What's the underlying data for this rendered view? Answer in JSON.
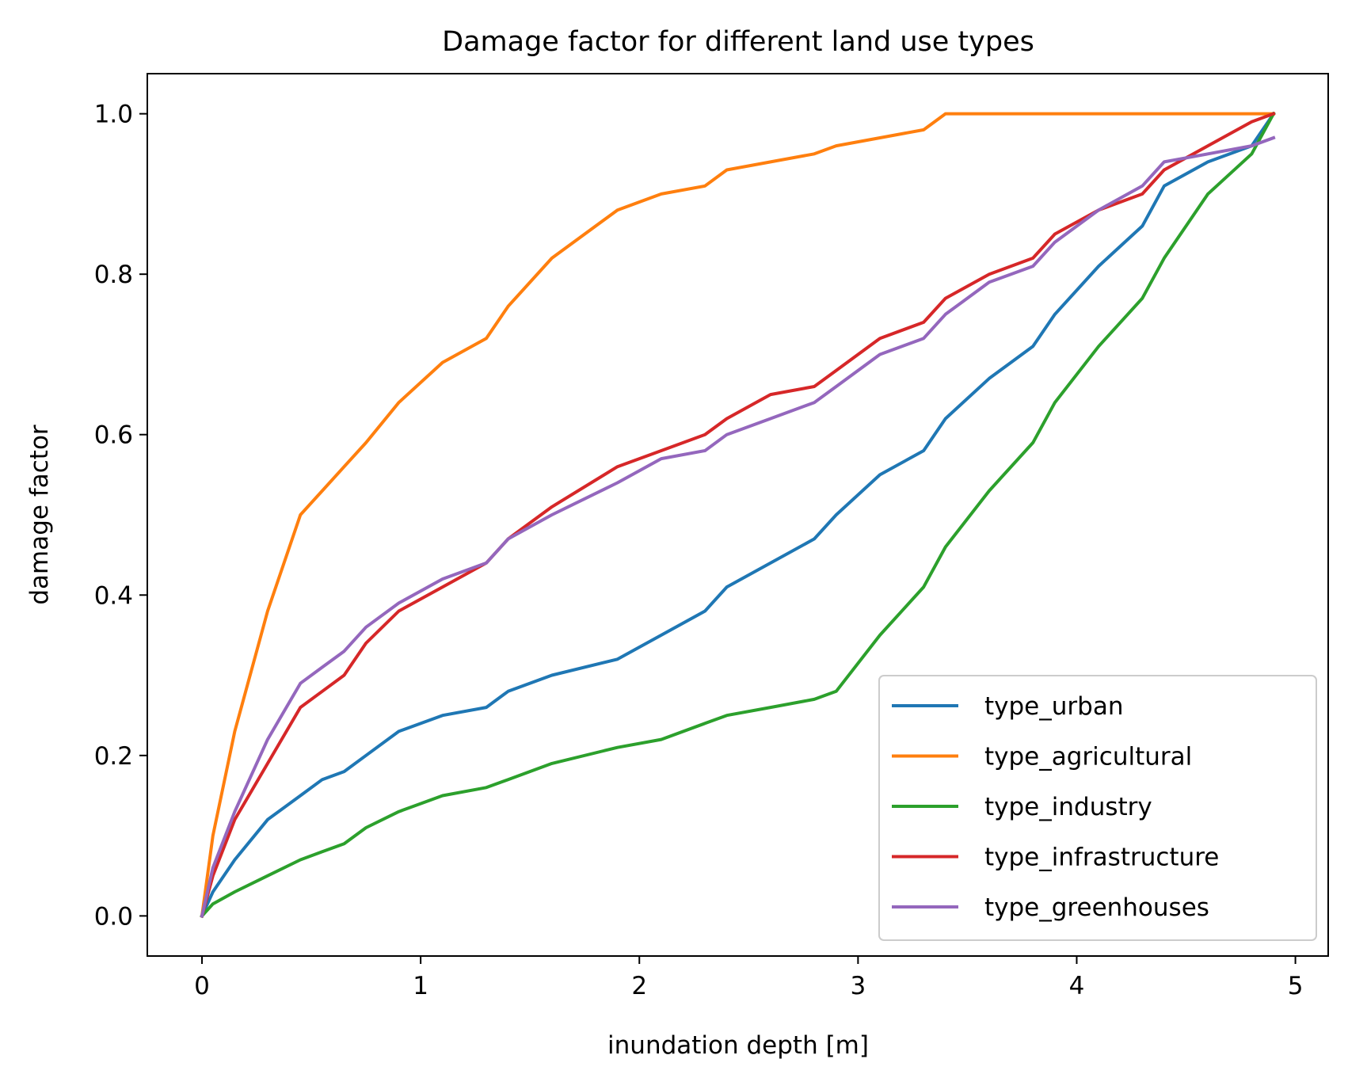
{
  "chart_data": {
    "type": "line",
    "title": "Damage factor for different land use types",
    "xlabel": "inundation depth [m]",
    "ylabel": "damage factor",
    "xlim": [
      -0.25,
      5.15
    ],
    "ylim": [
      -0.05,
      1.05
    ],
    "xticks": [
      0,
      1,
      2,
      3,
      4,
      5
    ],
    "xtick_labels": [
      "0",
      "1",
      "2",
      "3",
      "4",
      "5"
    ],
    "yticks": [
      0.0,
      0.2,
      0.4,
      0.6,
      0.8,
      1.0
    ],
    "ytick_labels": [
      "0.0",
      "0.2",
      "0.4",
      "0.6",
      "0.8",
      "1.0"
    ],
    "grid": false,
    "legend_position": "lower-right",
    "series": [
      {
        "name": "type_urban",
        "color": "#1f77b4",
        "x": [
          0,
          0.05,
          0.15,
          0.3,
          0.45,
          0.55,
          0.65,
          0.75,
          0.9,
          1.1,
          1.3,
          1.4,
          1.6,
          1.9,
          2.1,
          2.3,
          2.4,
          2.6,
          2.8,
          2.9,
          3.1,
          3.3,
          3.4,
          3.6,
          3.8,
          3.9,
          4.1,
          4.3,
          4.4,
          4.6,
          4.8,
          4.9
        ],
        "y": [
          0,
          0.03,
          0.07,
          0.12,
          0.15,
          0.17,
          0.18,
          0.2,
          0.23,
          0.25,
          0.26,
          0.28,
          0.3,
          0.32,
          0.35,
          0.38,
          0.41,
          0.44,
          0.47,
          0.5,
          0.55,
          0.58,
          0.62,
          0.67,
          0.71,
          0.75,
          0.81,
          0.86,
          0.91,
          0.94,
          0.96,
          1.0
        ]
      },
      {
        "name": "type_agricultural",
        "color": "#ff7f0e",
        "x": [
          0,
          0.05,
          0.15,
          0.3,
          0.45,
          0.55,
          0.65,
          0.75,
          0.9,
          1.1,
          1.3,
          1.4,
          1.6,
          1.9,
          2.1,
          2.3,
          2.4,
          2.6,
          2.8,
          2.9,
          3.1,
          3.3,
          3.4,
          3.6,
          3.8,
          3.9,
          4.1,
          4.3,
          4.4,
          4.6,
          4.8,
          4.9
        ],
        "y": [
          0,
          0.1,
          0.23,
          0.38,
          0.5,
          0.53,
          0.56,
          0.59,
          0.64,
          0.69,
          0.72,
          0.76,
          0.82,
          0.88,
          0.9,
          0.91,
          0.93,
          0.94,
          0.95,
          0.96,
          0.97,
          0.98,
          1.0,
          1.0,
          1.0,
          1.0,
          1.0,
          1.0,
          1.0,
          1.0,
          1.0,
          1.0
        ]
      },
      {
        "name": "type_industry",
        "color": "#2ca02c",
        "x": [
          0,
          0.05,
          0.15,
          0.3,
          0.45,
          0.55,
          0.65,
          0.75,
          0.9,
          1.1,
          1.3,
          1.4,
          1.6,
          1.9,
          2.1,
          2.3,
          2.4,
          2.6,
          2.8,
          2.9,
          3.1,
          3.3,
          3.4,
          3.6,
          3.8,
          3.9,
          4.1,
          4.3,
          4.4,
          4.6,
          4.8,
          4.9
        ],
        "y": [
          0,
          0.015,
          0.03,
          0.05,
          0.07,
          0.08,
          0.09,
          0.11,
          0.13,
          0.15,
          0.16,
          0.17,
          0.19,
          0.21,
          0.22,
          0.24,
          0.25,
          0.26,
          0.27,
          0.28,
          0.35,
          0.41,
          0.46,
          0.53,
          0.59,
          0.64,
          0.71,
          0.77,
          0.82,
          0.9,
          0.95,
          1.0
        ]
      },
      {
        "name": "type_infrastructure",
        "color": "#d62728",
        "x": [
          0,
          0.05,
          0.15,
          0.3,
          0.45,
          0.55,
          0.65,
          0.75,
          0.9,
          1.1,
          1.3,
          1.4,
          1.6,
          1.9,
          2.1,
          2.3,
          2.4,
          2.6,
          2.8,
          2.9,
          3.1,
          3.3,
          3.4,
          3.6,
          3.8,
          3.9,
          4.1,
          4.3,
          4.4,
          4.6,
          4.8,
          4.9
        ],
        "y": [
          0,
          0.05,
          0.12,
          0.19,
          0.26,
          0.28,
          0.3,
          0.34,
          0.38,
          0.41,
          0.44,
          0.47,
          0.51,
          0.56,
          0.58,
          0.6,
          0.62,
          0.65,
          0.66,
          0.68,
          0.72,
          0.74,
          0.77,
          0.8,
          0.82,
          0.85,
          0.88,
          0.9,
          0.93,
          0.96,
          0.99,
          1.0
        ]
      },
      {
        "name": "type_greenhouses",
        "color": "#9467bd",
        "x": [
          0,
          0.05,
          0.15,
          0.3,
          0.45,
          0.55,
          0.65,
          0.75,
          0.9,
          1.1,
          1.3,
          1.4,
          1.6,
          1.9,
          2.1,
          2.3,
          2.4,
          2.6,
          2.8,
          2.9,
          3.1,
          3.3,
          3.4,
          3.6,
          3.8,
          3.9,
          4.1,
          4.3,
          4.4,
          4.6,
          4.8,
          4.9
        ],
        "y": [
          0,
          0.06,
          0.13,
          0.22,
          0.29,
          0.31,
          0.33,
          0.36,
          0.39,
          0.42,
          0.44,
          0.47,
          0.5,
          0.54,
          0.57,
          0.58,
          0.6,
          0.62,
          0.64,
          0.66,
          0.7,
          0.72,
          0.75,
          0.79,
          0.81,
          0.84,
          0.88,
          0.91,
          0.94,
          0.95,
          0.96,
          0.97
        ]
      }
    ]
  }
}
